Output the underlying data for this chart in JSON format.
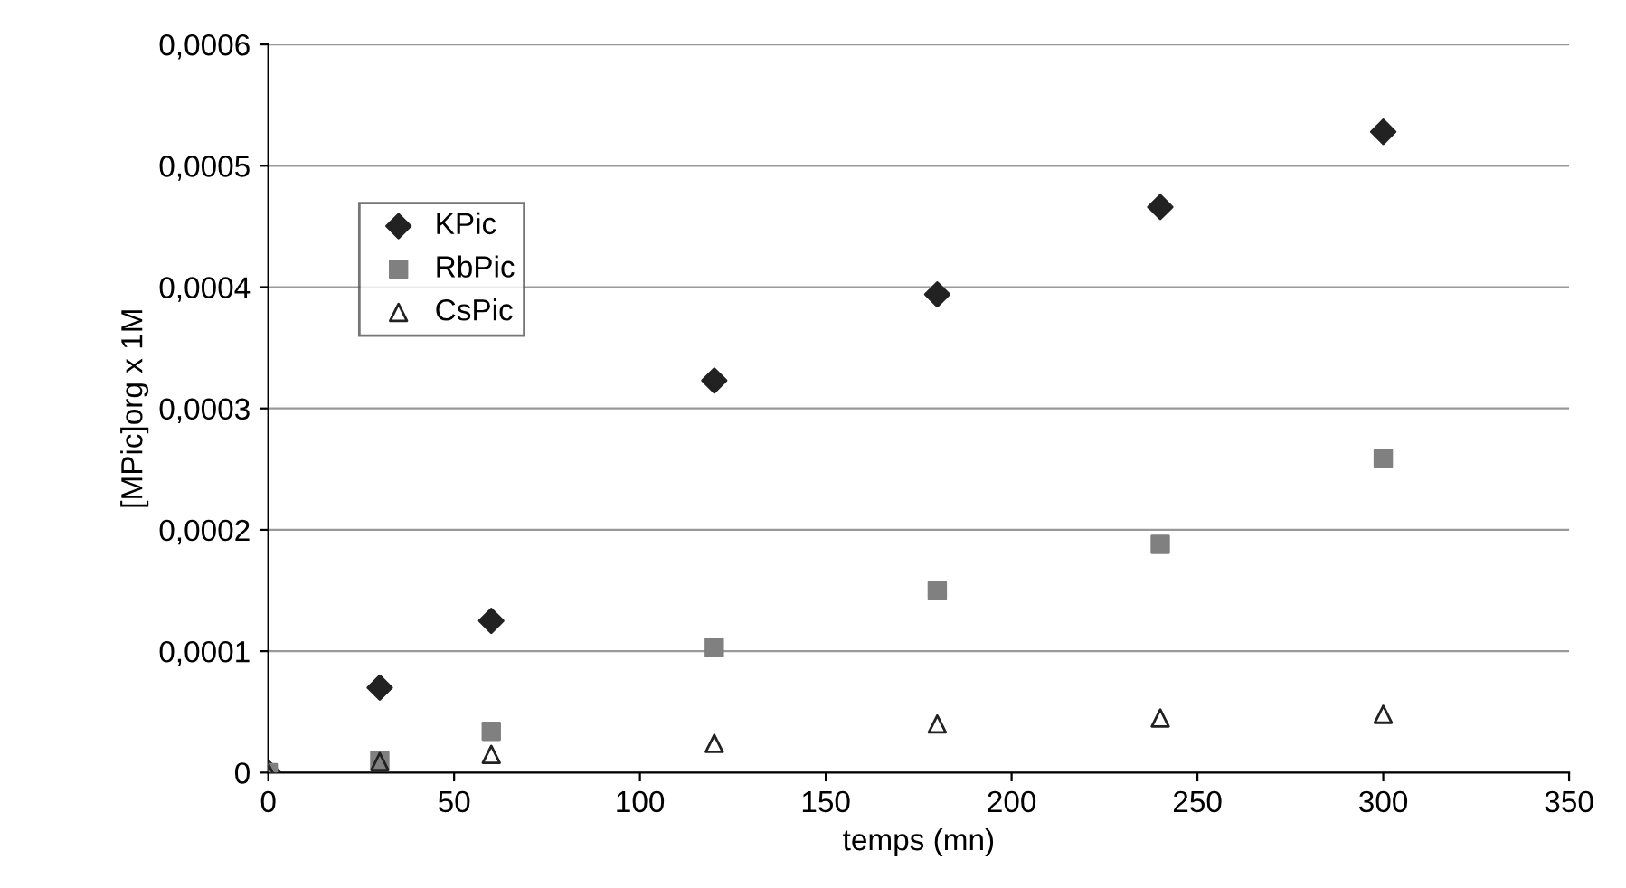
{
  "chart_data": {
    "type": "scatter",
    "xlabel": "temps (mn)",
    "ylabel": "[MPic]org x 1M",
    "x": [
      0,
      30,
      60,
      120,
      180,
      240,
      300
    ],
    "series": [
      {
        "name": "KPic",
        "color": "#222222",
        "marker": "diamond",
        "values": [
          0,
          7e-05,
          0.000125,
          0.000323,
          0.000394,
          0.000466,
          0.000528
        ]
      },
      {
        "name": "RbPic",
        "color": "#808080",
        "marker": "square",
        "values": [
          0,
          1e-05,
          3.4e-05,
          0.000103,
          0.00015,
          0.000188,
          0.000259
        ]
      },
      {
        "name": "CsPic",
        "color": "#222222",
        "marker": "triangle",
        "values": [
          0,
          9e-06,
          1.5e-05,
          2.4e-05,
          4e-05,
          4.5e-05,
          4.8e-05
        ]
      }
    ],
    "xlim": [
      0,
      350
    ],
    "xticks": [
      0,
      50,
      100,
      150,
      200,
      250,
      300,
      350
    ],
    "ylim": [
      0,
      0.0006
    ],
    "yticks": [
      {
        "value": 0,
        "label": "0"
      },
      {
        "value": 0.0001,
        "label": "0,0001"
      },
      {
        "value": 0.0002,
        "label": "0,0002"
      },
      {
        "value": 0.0003,
        "label": "0,0003"
      },
      {
        "value": 0.0004,
        "label": "0,0004"
      },
      {
        "value": 0.0005,
        "label": "0,0005"
      },
      {
        "value": 0.0006,
        "label": "0,0006"
      }
    ],
    "grid": "y",
    "legend": "top left"
  }
}
